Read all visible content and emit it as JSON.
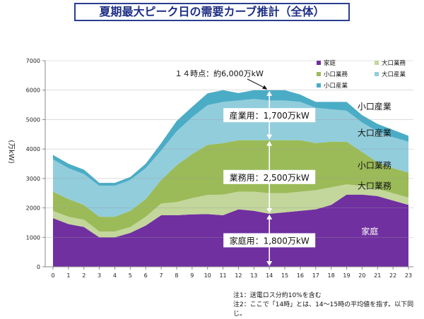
{
  "header": {
    "title": "夏期最大ピーク日の需要カーブ推計（全体）"
  },
  "notes": [
    "注1：送電ロス分約10%を含む",
    "注2：ここで「14時」とは、14～15時の平均値を指す。以下同じ。"
  ],
  "chart_data": {
    "type": "area",
    "stacked": true,
    "title": "",
    "ylabel": "(万kW)",
    "xlabel": "",
    "x": [
      0,
      1,
      2,
      3,
      4,
      5,
      6,
      7,
      8,
      9,
      10,
      11,
      12,
      13,
      14,
      15,
      16,
      17,
      18,
      19,
      20,
      21,
      22,
      23
    ],
    "ylim": [
      0,
      7000
    ],
    "yticks": [
      0,
      1000,
      2000,
      3000,
      4000,
      5000,
      6000,
      7000
    ],
    "grid": true,
    "legend_position": "top-right",
    "series": [
      {
        "name": "家庭",
        "color": "#7030a0",
        "values": [
          1650,
          1450,
          1350,
          1000,
          1000,
          1150,
          1400,
          1750,
          1750,
          1780,
          1790,
          1750,
          1950,
          1900,
          1800,
          1850,
          1900,
          1950,
          2100,
          2450,
          2450,
          2400,
          2250,
          2100
        ]
      },
      {
        "name": "大口業務",
        "color": "#c3d69b",
        "values": [
          250,
          250,
          250,
          200,
          200,
          200,
          300,
          400,
          450,
          550,
          650,
          700,
          600,
          650,
          700,
          650,
          650,
          650,
          600,
          350,
          300,
          250,
          250,
          250
        ]
      },
      {
        "name": "小口業務",
        "color": "#9bbb59",
        "values": [
          650,
          600,
          500,
          500,
          500,
          550,
          600,
          800,
          1250,
          1500,
          1700,
          1750,
          1750,
          1750,
          1800,
          1800,
          1750,
          1600,
          1550,
          1450,
          1150,
          900,
          850,
          850
        ]
      },
      {
        "name": "大口産業",
        "color": "#92cddc",
        "values": [
          1100,
          1050,
          1050,
          1050,
          1050,
          1050,
          1050,
          1000,
          1150,
          1250,
          1350,
          1400,
          1350,
          1400,
          1350,
          1350,
          1300,
          1200,
          1100,
          1050,
          1000,
          1050,
          1050,
          1050
        ]
      },
      {
        "name": "小口産業",
        "color": "#4bacc6",
        "values": [
          150,
          150,
          150,
          100,
          100,
          100,
          150,
          250,
          350,
          350,
          400,
          400,
          250,
          300,
          350,
          350,
          250,
          200,
          250,
          300,
          250,
          250,
          250,
          200
        ]
      }
    ],
    "area_labels": [
      {
        "text": "家庭",
        "x": 20.5,
        "y": 1100
      },
      {
        "text": "大口業務",
        "x": 20.8,
        "y": 2650
      },
      {
        "text": "小口業務",
        "x": 20.8,
        "y": 3350
      },
      {
        "text": "大口産業",
        "x": 20.8,
        "y": 4450
      },
      {
        "text": "小口産業",
        "x": 20.8,
        "y": 5350
      }
    ],
    "annotations": {
      "peak_label": "１４時点：約6,000万kW",
      "peak_x": 14,
      "peak_y": 6000,
      "brackets": [
        {
          "text": "産業用：1,700万kW",
          "from": 4300,
          "to": 6000
        },
        {
          "text": "業務用：2,500万kW",
          "from": 1800,
          "to": 4300
        },
        {
          "text": "家庭用：1,800万kW",
          "from": 0,
          "to": 1800
        }
      ]
    }
  }
}
